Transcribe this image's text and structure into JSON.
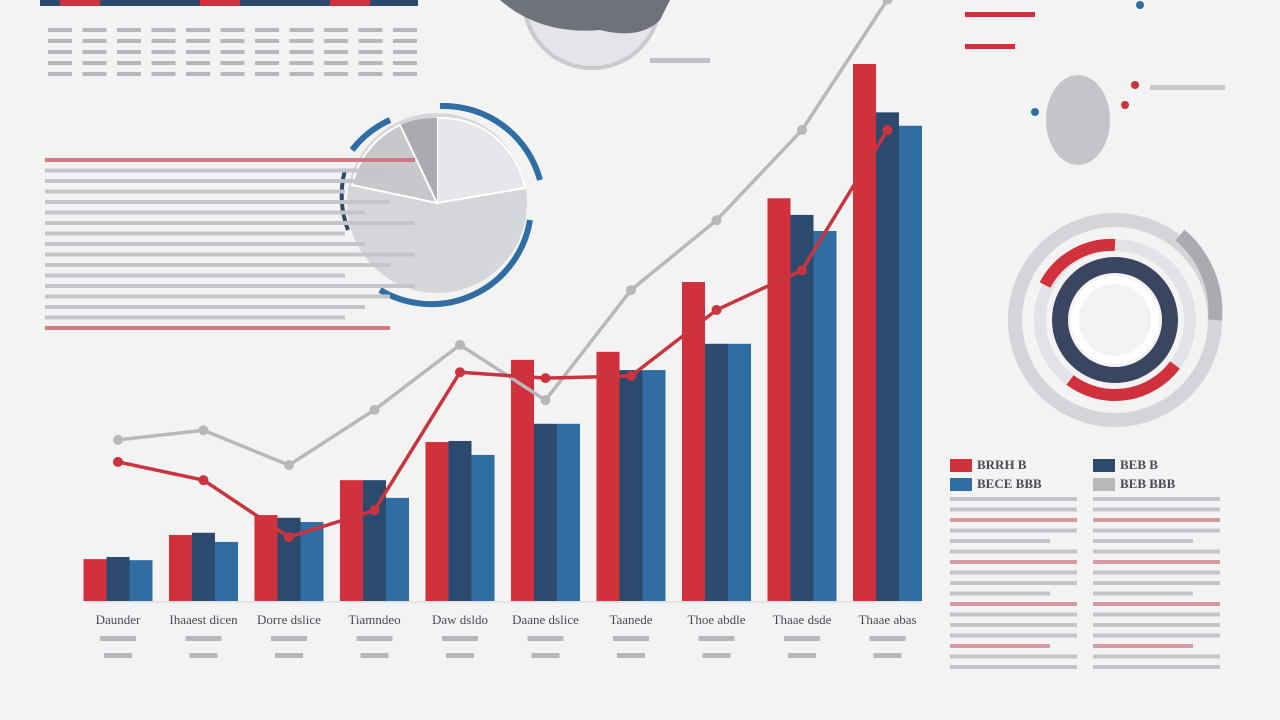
{
  "chart_data": {
    "type": "bar",
    "categories": [
      "Daunder",
      "Ihaaest dicen",
      "Dorre dslice",
      "Tiamndeo",
      "Daw dsldo",
      "Daane dslice",
      "Taanede",
      "Thoe abdle",
      "Thaae dsde",
      "Thaae abas"
    ],
    "ylim": [
      0,
      100
    ],
    "series": [
      {
        "name": "BRRH B",
        "color": "#d0313d",
        "values": [
          7.8,
          12.3,
          16,
          22.5,
          29.6,
          44.9,
          46.4,
          59.4,
          75,
          100
        ]
      },
      {
        "name": "BEB B",
        "color": "#2c4a6e",
        "values": [
          8.2,
          12.7,
          15.5,
          22.5,
          29.8,
          33,
          43,
          47.9,
          71.9,
          91
        ]
      },
      {
        "name": "BECE BBB",
        "color": "#2f6da3",
        "values": [
          7.6,
          11,
          14.7,
          19.2,
          27.2,
          33,
          43,
          47.9,
          68.9,
          88.5
        ]
      },
      {
        "name": "BEB BBB",
        "kind": "line",
        "color": "#b8b8bb",
        "values": [
          30,
          31.8,
          25.3,
          35.6,
          47.7,
          37.4,
          57.9,
          70.9,
          87.7,
          112
        ]
      },
      {
        "kind": "line",
        "color": "#c9353f",
        "values": [
          25.9,
          22.5,
          11.9,
          16.9,
          42.6,
          41.5,
          41.9,
          54.2,
          61.6,
          87.7
        ]
      }
    ]
  }
}
